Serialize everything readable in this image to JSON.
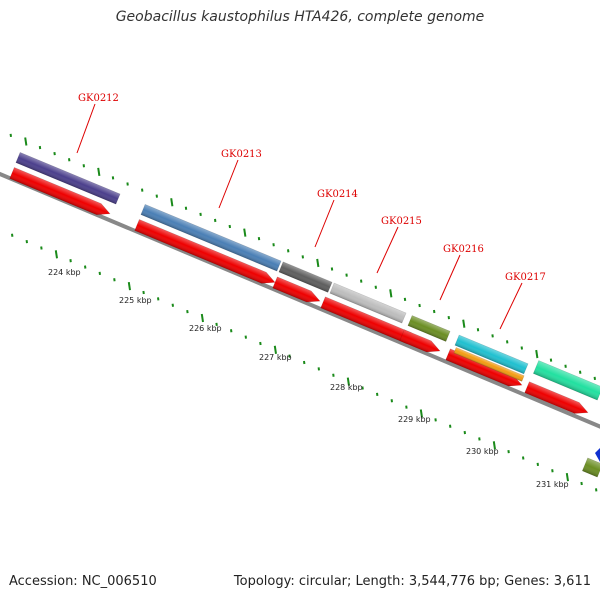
{
  "title": "Geobacillus kaustophilus HTA426, complete genome",
  "footer": {
    "accession": "Accession: NC_006510",
    "summary": "Topology: circular; Length: 3,544,776 bp; Genes: 3,611"
  },
  "ruler_labels": [
    "224 kbp",
    "225 kbp",
    "226 kbp",
    "227 kbp",
    "228 kbp",
    "229 kbp",
    "230 kbp",
    "231 kbp"
  ],
  "genes": [
    {
      "id": "GK0212",
      "color": "#4b3f8c"
    },
    {
      "id": "GK0213",
      "color": "#4a7fb5"
    },
    {
      "id": "GK0214",
      "color": "#5e5e5e"
    },
    {
      "id": "GK0215",
      "color": "#bdbdbd"
    },
    {
      "id": "GK0216",
      "color": "#6b8e23"
    },
    {
      "id": "GK0217",
      "color": "#20c0d0"
    }
  ],
  "colors": {
    "backbone": "#888888",
    "cds": "#ee0000",
    "label": "#dd0000",
    "tick": "#1a8a1a"
  }
}
